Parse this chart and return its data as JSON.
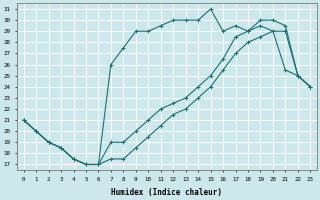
{
  "xlabel": "Humidex (Indice chaleur)",
  "bg_color": "#cce8ec",
  "grid_color": "#ffffff",
  "line_color": "#1a7070",
  "xlim": [
    -0.5,
    23.5
  ],
  "ylim": [
    16.5,
    31.5
  ],
  "yticks": [
    17,
    18,
    19,
    20,
    21,
    22,
    23,
    24,
    25,
    26,
    27,
    28,
    29,
    30,
    31
  ],
  "xticks": [
    0,
    1,
    2,
    3,
    4,
    5,
    6,
    7,
    8,
    9,
    10,
    11,
    12,
    13,
    14,
    15,
    16,
    17,
    18,
    19,
    20,
    21,
    22,
    23
  ],
  "curve1_x": [
    0,
    1,
    2,
    3,
    4,
    5,
    6,
    7,
    8,
    9,
    10,
    11,
    12,
    13,
    14,
    15,
    16,
    17,
    18,
    19,
    20,
    21,
    22,
    23
  ],
  "curve1_y": [
    21,
    20,
    19,
    18.5,
    17.5,
    17,
    17,
    26,
    27.5,
    29,
    29,
    29.5,
    30,
    30,
    30,
    31,
    29,
    29.5,
    29,
    29.5,
    29,
    25.5,
    25,
    24
  ],
  "curve2_x": [
    0,
    1,
    2,
    3,
    4,
    5,
    6,
    7,
    8,
    9,
    10,
    11,
    12,
    13,
    14,
    15,
    16,
    17,
    18,
    19,
    20,
    21,
    22,
    23
  ],
  "curve2_y": [
    21,
    20,
    19,
    18.5,
    17.5,
    17,
    17,
    19,
    19,
    20,
    21,
    22,
    22.5,
    23,
    24,
    25,
    26.5,
    28.5,
    29,
    30,
    30,
    29.5,
    25,
    24
  ],
  "curve3_x": [
    0,
    1,
    2,
    3,
    4,
    5,
    6,
    7,
    8,
    9,
    10,
    11,
    12,
    13,
    14,
    15,
    16,
    17,
    18,
    19,
    20,
    21,
    22,
    23
  ],
  "curve3_y": [
    21,
    20,
    19,
    18.5,
    17.5,
    17,
    17,
    17.5,
    17.5,
    18.5,
    19.5,
    20.5,
    21.5,
    22,
    23,
    24,
    25.5,
    27,
    28,
    28.5,
    29,
    29,
    25,
    24
  ]
}
